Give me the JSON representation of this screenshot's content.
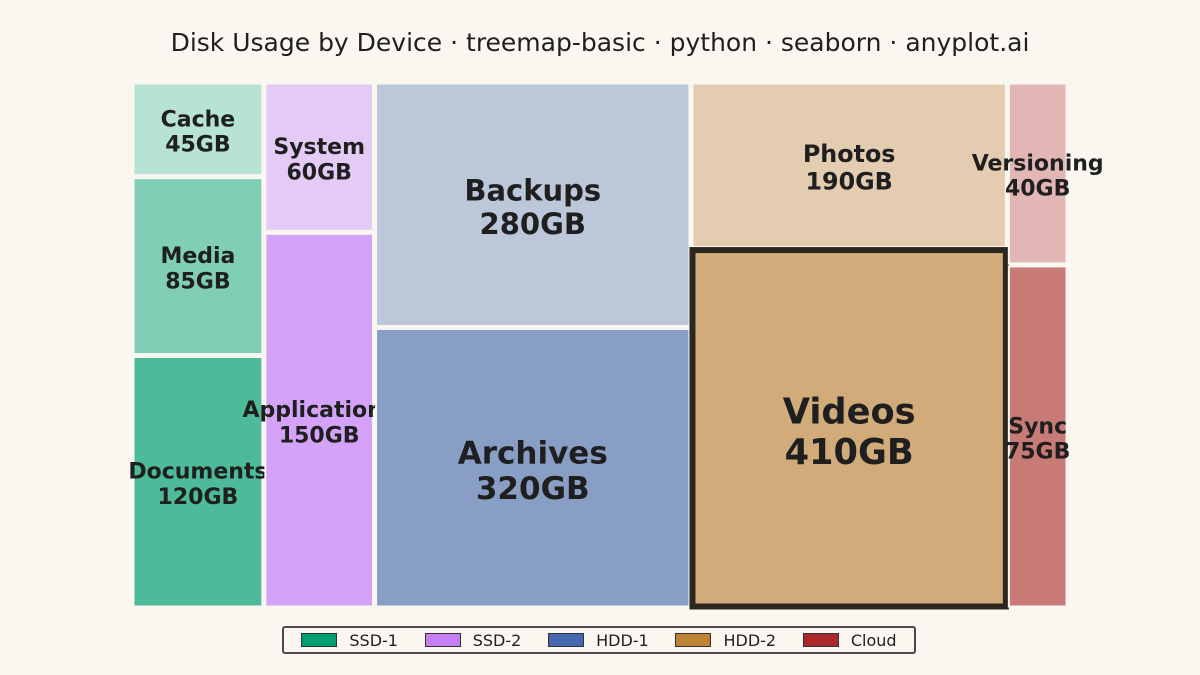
{
  "chart_data": {
    "type": "treemap",
    "title": "Disk Usage by Device · treemap-basic · python · seaborn · anyplot.ai",
    "devices": [
      {
        "name": "SSD-1",
        "color": "#009E73"
      },
      {
        "name": "SSD-2",
        "color": "#C77DF3"
      },
      {
        "name": "HDD-1",
        "color": "#4467AD"
      },
      {
        "name": "HDD-2",
        "color": "#BD8233"
      },
      {
        "name": "Cloud",
        "color": "#A8282C"
      }
    ],
    "items": [
      {
        "label": "Cache",
        "value": 45,
        "value_label": "45GB",
        "device": "SSD-1",
        "fill": "#B6E3D3"
      },
      {
        "label": "Media",
        "value": 85,
        "value_label": "85GB",
        "device": "SSD-1",
        "fill": "#80CEB5"
      },
      {
        "label": "Documents",
        "value": 120,
        "value_label": "120GB",
        "device": "SSD-1",
        "fill": "#4DBA9A"
      },
      {
        "label": "System",
        "value": 60,
        "value_label": "60GB",
        "device": "SSD-2",
        "fill": "#E4CBF6"
      },
      {
        "label": "Applications",
        "value": 150,
        "value_label": "150GB",
        "device": "SSD-2",
        "fill": "#D4A3F8"
      },
      {
        "label": "Backups",
        "value": 280,
        "value_label": "280GB",
        "device": "HDD-1",
        "fill": "#BCC7DA"
      },
      {
        "label": "Archives",
        "value": 320,
        "value_label": "320GB",
        "device": "HDD-1",
        "fill": "#899EC5"
      },
      {
        "label": "Photos",
        "value": 190,
        "value_label": "190GB",
        "device": "HDD-2",
        "fill": "#E4CCB1"
      },
      {
        "label": "Videos",
        "value": 410,
        "value_label": "410GB",
        "device": "HDD-2",
        "fill": "#D2AB7A",
        "highlighted": true
      },
      {
        "label": "Versioning",
        "value": 40,
        "value_label": "40GB",
        "device": "Cloud",
        "fill": "#E1B6B5"
      },
      {
        "label": "Sync",
        "value": 75,
        "value_label": "75GB",
        "device": "Cloud",
        "fill": "#C87A77"
      }
    ],
    "legend_position": "bottom-center"
  }
}
